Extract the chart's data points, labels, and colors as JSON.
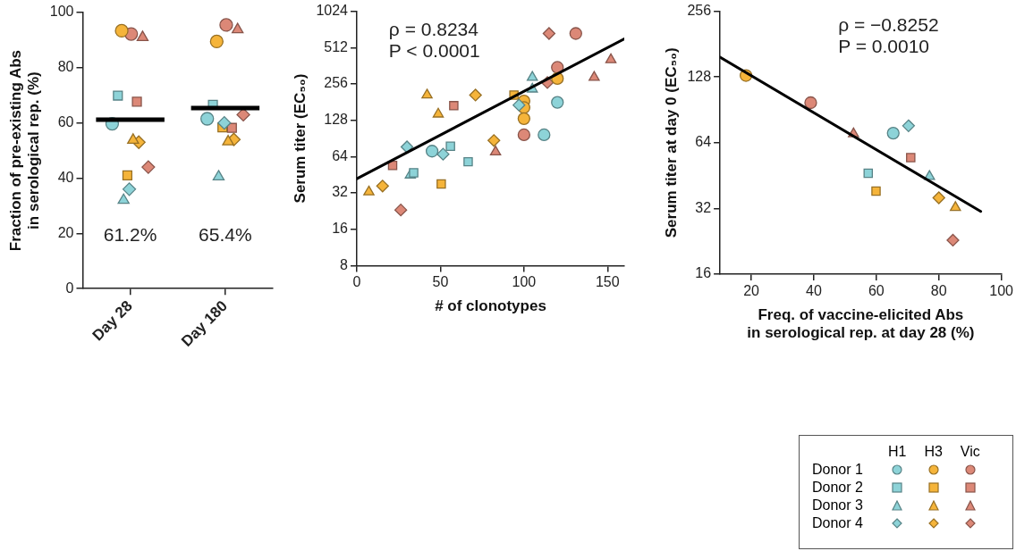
{
  "chart_data": [
    {
      "type": "scatter",
      "ylabel": "Fraction of pre-existing Abs\nin serological rep. (%)",
      "categories": [
        "Day 28",
        "Day 180"
      ],
      "ylim": [
        0,
        100
      ],
      "yticks": [
        0,
        20,
        40,
        60,
        80,
        100
      ],
      "annotations": [
        "61.2%",
        "65.4%"
      ],
      "ref_lines": [
        {
          "axis": "y",
          "value": 61.2,
          "color": "#000000"
        },
        {
          "axis": "y",
          "value": 65.4,
          "color": "#000000"
        }
      ],
      "series": [
        {
          "color": "#8dd3d8",
          "marker": "circle",
          "values": [
            59.7,
            61.5
          ]
        },
        {
          "color": "#8dd3d8",
          "marker": "square",
          "values": [
            69.9,
            66.6
          ]
        },
        {
          "color": "#8dd3d8",
          "marker": "triangle",
          "values": [
            32,
            40.5
          ]
        },
        {
          "color": "#8dd3d8",
          "marker": "diamond",
          "values": [
            36,
            60
          ]
        },
        {
          "color": "#f5b43a",
          "marker": "circle",
          "values": [
            93.4,
            89.5
          ]
        },
        {
          "color": "#f5b43a",
          "marker": "square",
          "values": [
            41,
            58.4
          ]
        },
        {
          "color": "#f5b43a",
          "marker": "triangle",
          "values": [
            53.8,
            53.2
          ]
        },
        {
          "color": "#f5b43a",
          "marker": "diamond",
          "values": [
            53,
            54
          ]
        },
        {
          "color": "#dc8877",
          "marker": "circle",
          "values": [
            92.2,
            95.5
          ]
        },
        {
          "color": "#dc8877",
          "marker": "square",
          "values": [
            67.7,
            58.2
          ]
        },
        {
          "color": "#dc8877",
          "marker": "triangle",
          "values": [
            91,
            93.8
          ]
        },
        {
          "color": "#dc8877",
          "marker": "diamond",
          "values": [
            44,
            63
          ]
        }
      ]
    },
    {
      "type": "scatter",
      "ylabel": "Serum titer (EC₅₀)",
      "xlabel": "# of clonotypes",
      "log": "y",
      "xlim": [
        0,
        160
      ],
      "xticks": [
        0,
        50,
        100,
        150
      ],
      "ylim": [
        8,
        1024
      ],
      "yticks": [
        8,
        16,
        32,
        64,
        128,
        256,
        512,
        1024
      ],
      "annotations": [
        "ρ = 0.8234",
        "P < 0.0001"
      ],
      "series": [
        {
          "color": "#8dd3d8",
          "marker": "circle",
          "x": [
            45,
            112,
            120
          ],
          "values": [
            71,
            97,
            180
          ]
        },
        {
          "color": "#8dd3d8",
          "marker": "square",
          "x": [
            34,
            56,
            66.6
          ],
          "values": [
            47,
            78,
            58
          ]
        },
        {
          "color": "#8dd3d8",
          "marker": "triangle",
          "x": [
            32,
            105,
            105
          ],
          "values": [
            45,
            290,
            232
          ]
        },
        {
          "color": "#8dd3d8",
          "marker": "diamond",
          "x": [
            30,
            51.6,
            97
          ],
          "values": [
            77,
            67,
            171
          ]
        },
        {
          "color": "#f5b43a",
          "marker": "circle",
          "x": [
            100,
            100,
            100,
            120
          ],
          "values": [
            185,
            163,
            132,
            284
          ]
        },
        {
          "color": "#f5b43a",
          "marker": "square",
          "x": [
            94,
            50.5
          ],
          "values": [
            207,
            38
          ]
        },
        {
          "color": "#f5b43a",
          "marker": "triangle",
          "x": [
            42,
            48.7,
            7.2
          ],
          "values": [
            207,
            144,
            32.6
          ]
        },
        {
          "color": "#f5b43a",
          "marker": "diamond",
          "x": [
            71,
            82,
            15.4
          ],
          "values": [
            207,
            87,
            36.5
          ]
        },
        {
          "color": "#dc8877",
          "marker": "circle",
          "x": [
            131,
            120,
            100
          ],
          "values": [
            670,
            351,
            97
          ]
        },
        {
          "color": "#dc8877",
          "marker": "square",
          "x": [
            58,
            21.4
          ],
          "values": [
            169,
            54
          ]
        },
        {
          "color": "#dc8877",
          "marker": "triangle",
          "x": [
            152,
            142,
            83
          ],
          "values": [
            406,
            290,
            70
          ]
        },
        {
          "color": "#dc8877",
          "marker": "diamond",
          "x": [
            115,
            114,
            26.3
          ],
          "values": [
            670,
            263,
            23.1
          ]
        },
        {
          "type": "line",
          "color": "#000000",
          "x": [
            0,
            160
          ],
          "values": [
            42,
            604
          ]
        }
      ]
    },
    {
      "type": "scatter",
      "ylabel": "Serum titer at day 0 (EC₅₀)",
      "xlabel": "Freq. of vaccine-elicited Abs\nin serological rep. at day 28 (%)",
      "log": "y",
      "xlim": [
        10,
        100
      ],
      "xticks": [
        20,
        40,
        60,
        80,
        100
      ],
      "ylim": [
        16,
        256
      ],
      "yticks": [
        16,
        32,
        64,
        128,
        256
      ],
      "annotations": [
        "ρ = −0.8252",
        "P = 0.0010"
      ],
      "series": [
        {
          "color": "#8dd3d8",
          "marker": "circle",
          "x": [
            65.4
          ],
          "values": [
            70.8
          ]
        },
        {
          "color": "#8dd3d8",
          "marker": "square",
          "x": [
            57.4
          ],
          "values": [
            46.4
          ]
        },
        {
          "color": "#8dd3d8",
          "marker": "triangle",
          "x": [
            77
          ],
          "values": [
            44.8
          ]
        },
        {
          "color": "#8dd3d8",
          "marker": "diamond",
          "x": [
            70.3
          ],
          "values": [
            76.5
          ]
        },
        {
          "color": "#f5b43a",
          "marker": "circle",
          "x": [
            18.3
          ],
          "values": [
            130
          ]
        },
        {
          "color": "#f5b43a",
          "marker": "square",
          "x": [
            59.9
          ],
          "values": [
            38.4
          ]
        },
        {
          "color": "#f5b43a",
          "marker": "triangle",
          "x": [
            85.3
          ],
          "values": [
            32.3
          ]
        },
        {
          "color": "#f5b43a",
          "marker": "diamond",
          "x": [
            80
          ],
          "values": [
            35.8
          ]
        },
        {
          "color": "#dc8877",
          "marker": "circle",
          "x": [
            39
          ],
          "values": [
            97.6
          ]
        },
        {
          "color": "#dc8877",
          "marker": "square",
          "x": [
            71
          ],
          "values": [
            54.7
          ]
        },
        {
          "color": "#dc8877",
          "marker": "triangle",
          "x": [
            52.7
          ],
          "values": [
            70.3
          ]
        },
        {
          "color": "#dc8877",
          "marker": "diamond",
          "x": [
            84.5
          ],
          "values": [
            22.9
          ]
        },
        {
          "type": "line",
          "color": "#000000",
          "x": [
            10,
            93.4
          ],
          "values": [
            157.6,
            31
          ]
        }
      ]
    },
    {
      "type": "other",
      "categories": [
        "H1",
        "H3",
        "Vic"
      ],
      "y_categories": [
        "Donor 1",
        "Donor 2",
        "Donor 3",
        "Donor 4"
      ]
    }
  ]
}
